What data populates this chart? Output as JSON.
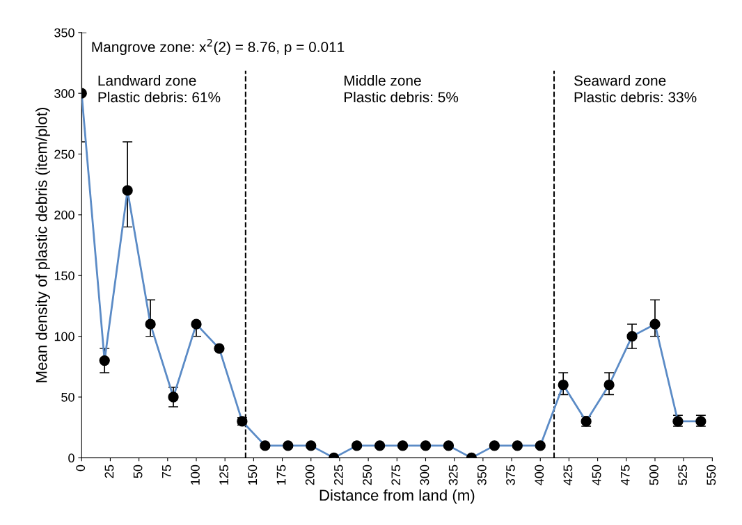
{
  "chart_data": {
    "type": "line",
    "xlabel": "Distance from land (m)",
    "ylabel": "Mean density of plastic debris (item/plot)",
    "x": [
      0,
      20,
      40,
      60,
      80,
      100,
      120,
      140,
      160,
      180,
      200,
      220,
      240,
      260,
      280,
      300,
      320,
      340,
      360,
      380,
      400,
      420,
      440,
      460,
      480,
      500,
      520,
      540
    ],
    "series": [
      {
        "color": "#5b8bc6",
        "values": [
          300,
          80,
          220,
          110,
          50,
          110,
          90,
          30,
          10,
          10,
          10,
          0,
          10,
          10,
          10,
          10,
          10,
          0,
          10,
          10,
          10,
          60,
          30,
          60,
          100,
          110,
          30,
          30
        ],
        "errors": [
          [
            260,
            350
          ],
          [
            70,
            90
          ],
          [
            190,
            260
          ],
          [
            100,
            130
          ],
          [
            42,
            58
          ],
          [
            100,
            110
          ],
          null,
          [
            27,
            33
          ],
          null,
          null,
          null,
          null,
          null,
          null,
          null,
          null,
          null,
          null,
          null,
          null,
          null,
          [
            52,
            70
          ],
          [
            26,
            34
          ],
          [
            52,
            70
          ],
          [
            90,
            110
          ],
          [
            100,
            130
          ],
          [
            26,
            35
          ],
          [
            26,
            35
          ]
        ]
      }
    ],
    "marker": "circle",
    "line_style": "solid",
    "grid": false,
    "legend": false,
    "xlim": [
      0,
      550
    ],
    "xticks": [
      0,
      25,
      50,
      75,
      100,
      125,
      150,
      175,
      200,
      225,
      250,
      275,
      300,
      325,
      350,
      375,
      400,
      425,
      450,
      475,
      500,
      525,
      550
    ],
    "ylim": [
      0,
      350
    ],
    "yticks": [
      0,
      50,
      100,
      150,
      200,
      250,
      300,
      350
    ],
    "ref_lines": [
      {
        "axis": "x",
        "value": 143,
        "color": "#000000",
        "line_style": "dashed"
      },
      {
        "axis": "x",
        "value": 412,
        "color": "#000000",
        "line_style": "dashed"
      }
    ],
    "annotations": [
      "Mangrove zone: x$^{2}$(2) = 8.76, p = 0.011",
      "Landward zone\nPlastic debris: 61%",
      "Middle zone\nPlastic debris: 5%",
      "Seaward zone\nPlastic debris: 33%"
    ]
  }
}
